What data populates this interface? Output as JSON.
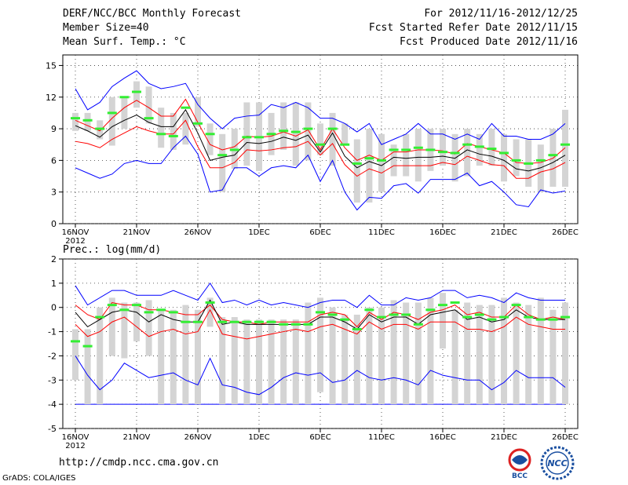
{
  "header": {
    "title": "DERF/NCC/BCC Monthly Forecast",
    "member_size": "Member Size=40",
    "variable": "Mean Surf. Temp.: °C",
    "period": "For 2012/11/16-2012/12/25",
    "started": "Fcst Started Refer Date 2012/11/15",
    "produced": "Fcst Produced Date 2012/11/16"
  },
  "footer": {
    "url": "http://cmdp.ncc.cma.gov.cn",
    "credit": "GrADS: COLA/IGES",
    "logo_bcc": "BCC",
    "logo_ncc": "NCC"
  },
  "colors": {
    "max": "#0000ff",
    "pct": "#ff0000",
    "mean": "#000000",
    "box": "#d4d4d4",
    "median": "#33ee33"
  },
  "chart_data": [
    {
      "type": "box",
      "title": "Mean Surf. Temp.: °C",
      "ylim": [
        0,
        16
      ],
      "yticks": [
        0,
        3,
        6,
        9,
        12,
        15
      ],
      "xticks": [
        {
          "day": 0,
          "label": "16NOV",
          "sub": "2012"
        },
        {
          "day": 5,
          "label": "21NOV"
        },
        {
          "day": 10,
          "label": "26NOV"
        },
        {
          "day": 15,
          "label": "1DEC"
        },
        {
          "day": 20,
          "label": "6DEC"
        },
        {
          "day": 25,
          "label": "11DEC"
        },
        {
          "day": 30,
          "label": "16DEC"
        },
        {
          "day": 35,
          "label": "21DEC"
        },
        {
          "day": 40,
          "label": "26DEC"
        }
      ],
      "days": 40,
      "box_low": [
        8.8,
        8.8,
        8.0,
        7.4,
        9.0,
        11.0,
        9.5,
        7.2,
        7.0,
        7.5,
        9.2,
        6.5,
        3.0,
        5.2,
        5.5,
        5.0,
        6.5,
        7.0,
        5.5,
        6.0,
        6.5,
        5.5,
        7.5,
        2.0,
        2.0,
        3.0,
        4.5,
        4.5,
        4.0,
        5.0,
        5.5,
        4.0,
        4.5,
        5.5,
        5.5,
        4.0,
        4.5,
        3.5,
        3.0,
        3.5,
        3.5
      ],
      "box_high": [
        10.5,
        10.5,
        9.8,
        12.0,
        12.0,
        13.5,
        13.0,
        11.0,
        10.5,
        10.5,
        12.0,
        9.5,
        8.5,
        9.0,
        11.5,
        11.5,
        10.5,
        11.5,
        11.5,
        11.5,
        9.5,
        10.5,
        9.5,
        8.0,
        9.0,
        8.5,
        7.5,
        8.5,
        9.0,
        9.0,
        9.0,
        8.5,
        9.0,
        8.5,
        9.0,
        8.5,
        8.0,
        8.0,
        7.5,
        9.0,
        10.8
      ],
      "median": [
        10.0,
        9.8,
        9.0,
        10.5,
        12.0,
        12.5,
        10.0,
        8.5,
        8.3,
        11.0,
        9.5,
        8.5,
        6.5,
        7.0,
        8.2,
        8.2,
        8.5,
        8.8,
        8.7,
        9.0,
        7.5,
        9.0,
        7.5,
        5.7,
        6.2,
        6.0,
        7.0,
        7.0,
        7.2,
        7.0,
        6.8,
        6.7,
        7.5,
        7.3,
        7.1,
        6.7,
        6.0,
        5.7,
        6.0,
        6.5,
        7.5
      ],
      "max": [
        12.8,
        10.8,
        11.5,
        13.0,
        13.8,
        14.5,
        13.3,
        12.8,
        13.0,
        13.3,
        11.3,
        10.0,
        9.0,
        10.0,
        10.2,
        10.3,
        11.3,
        11.0,
        11.5,
        11.0,
        10.0,
        10.0,
        9.5,
        8.7,
        9.5,
        7.5,
        8.0,
        8.5,
        9.5,
        8.5,
        8.5,
        8.0,
        8.5,
        8.0,
        9.5,
        8.3,
        8.3,
        8.0,
        8.0,
        8.5,
        9.5
      ],
      "upper": [
        9.8,
        9.3,
        8.8,
        10.0,
        11.0,
        11.7,
        11.0,
        10.2,
        10.2,
        11.8,
        9.6,
        7.5,
        7.0,
        7.3,
        8.3,
        8.2,
        8.3,
        8.7,
        8.3,
        8.9,
        7.0,
        9.0,
        7.2,
        6.0,
        6.5,
        6.0,
        6.8,
        6.8,
        7.0,
        7.0,
        6.9,
        6.6,
        7.6,
        7.3,
        7.0,
        6.7,
        5.8,
        5.7,
        5.8,
        6.2,
        7.2
      ],
      "mean": [
        9.3,
        8.8,
        8.2,
        9.2,
        9.8,
        10.3,
        9.6,
        9.2,
        9.2,
        10.8,
        8.6,
        6.0,
        6.3,
        6.5,
        7.7,
        7.6,
        7.8,
        8.2,
        7.9,
        8.4,
        6.8,
        8.6,
        6.4,
        5.3,
        5.9,
        5.5,
        6.3,
        6.2,
        6.3,
        6.3,
        6.4,
        6.2,
        7.0,
        6.6,
        6.4,
        6.0,
        5.2,
        5.0,
        5.3,
        5.8,
        6.5
      ],
      "lower": [
        7.8,
        7.6,
        7.2,
        8.0,
        8.6,
        9.2,
        8.8,
        8.5,
        8.5,
        9.8,
        7.3,
        5.3,
        5.3,
        5.8,
        7.0,
        6.9,
        7.0,
        7.2,
        7.3,
        7.8,
        6.5,
        7.6,
        5.6,
        4.5,
        5.2,
        4.8,
        5.5,
        5.5,
        5.5,
        5.5,
        5.8,
        5.6,
        6.4,
        6.0,
        5.6,
        5.5,
        4.3,
        4.3,
        4.9,
        5.2,
        5.8
      ],
      "min": [
        5.3,
        4.8,
        4.3,
        4.7,
        5.7,
        6.0,
        5.7,
        5.7,
        7.2,
        8.3,
        6.6,
        3.0,
        3.2,
        5.3,
        5.3,
        4.5,
        5.3,
        5.5,
        5.3,
        6.5,
        4.0,
        6.0,
        3.0,
        1.3,
        2.5,
        2.4,
        3.6,
        3.8,
        2.9,
        4.2,
        4.2,
        4.2,
        4.8,
        3.6,
        4.0,
        3.0,
        1.8,
        1.6,
        3.2,
        2.9,
        3.1
      ]
    },
    {
      "type": "box",
      "title": "Prec.: log(mm/d)",
      "ylim": [
        -5,
        2
      ],
      "yticks": [
        -5,
        -4,
        -3,
        -2,
        -1,
        0,
        1,
        2
      ],
      "xticks": [
        {
          "day": 0,
          "label": "16NOV",
          "sub": "2012"
        },
        {
          "day": 5,
          "label": "21NOV"
        },
        {
          "day": 10,
          "label": "26NOV"
        },
        {
          "day": 15,
          "label": "1DEC"
        },
        {
          "day": 20,
          "label": "6DEC"
        },
        {
          "day": 25,
          "label": "11DEC"
        },
        {
          "day": 30,
          "label": "16DEC"
        },
        {
          "day": 35,
          "label": "21DEC"
        },
        {
          "day": 40,
          "label": "26DEC"
        }
      ],
      "days": 40,
      "floor": -4,
      "box_low": [
        -3.0,
        -4.0,
        -4.0,
        -2.0,
        -2.1,
        -1.4,
        -2.0,
        -4.0,
        -4.0,
        -4.0,
        -4.0,
        -0.8,
        -4.0,
        -4.0,
        -4.0,
        -4.0,
        -4.0,
        -4.0,
        -4.0,
        -4.0,
        -3.5,
        -4.0,
        -4.0,
        -4.0,
        -4.0,
        -4.0,
        -4.0,
        -4.0,
        -4.0,
        -4.0,
        -1.7,
        -4.0,
        -4.0,
        -4.0,
        -4.0,
        -4.0,
        -4.0,
        -4.0,
        -4.0,
        -4.0,
        -4.0
      ],
      "box_high": [
        -0.9,
        -0.9,
        0.0,
        0.4,
        0.2,
        0.2,
        0.3,
        -0.1,
        -0.1,
        0.1,
        -0.1,
        0.4,
        -0.4,
        -0.4,
        -0.5,
        -0.5,
        -0.5,
        -0.5,
        -0.5,
        0.2,
        0.4,
        0.0,
        -0.3,
        -0.3,
        0.0,
        0.0,
        0.3,
        0.2,
        0.2,
        0.4,
        0.6,
        -0.1,
        0.2,
        0.1,
        0.1,
        0.4,
        0.2,
        0.1,
        0.4,
        -0.1,
        0.2
      ],
      "median": [
        -1.4,
        -1.6,
        -0.4,
        0.1,
        -0.1,
        0.1,
        -0.2,
        -0.1,
        -0.2,
        -0.6,
        -0.6,
        0.2,
        -0.6,
        -0.6,
        -0.6,
        -0.6,
        -0.6,
        -0.7,
        -0.7,
        -0.7,
        -0.2,
        -0.3,
        -0.5,
        -0.9,
        -0.1,
        -0.4,
        -0.3,
        -0.3,
        -0.7,
        -0.1,
        0.1,
        0.2,
        -0.4,
        -0.3,
        -0.5,
        -0.4,
        0.1,
        -0.4,
        -0.5,
        -0.5,
        -0.4
      ],
      "max": [
        0.9,
        0.1,
        0.4,
        0.7,
        0.7,
        0.5,
        0.5,
        0.5,
        0.7,
        0.5,
        0.3,
        1.0,
        0.2,
        0.3,
        0.1,
        0.3,
        0.1,
        0.2,
        0.1,
        0.0,
        0.2,
        0.3,
        0.3,
        0.0,
        0.5,
        0.1,
        0.1,
        0.4,
        0.3,
        0.4,
        0.7,
        0.7,
        0.4,
        0.5,
        0.4,
        0.2,
        0.6,
        0.4,
        0.3,
        0.3,
        0.3
      ],
      "upper": [
        0.1,
        -0.3,
        -0.5,
        0.2,
        0.1,
        0.1,
        -0.1,
        -0.1,
        -0.2,
        -0.3,
        -0.3,
        0.1,
        -0.5,
        -0.6,
        -0.6,
        -0.7,
        -0.6,
        -0.6,
        -0.6,
        -0.6,
        -0.3,
        -0.2,
        -0.3,
        -0.8,
        -0.2,
        -0.5,
        -0.2,
        -0.3,
        -0.5,
        -0.2,
        -0.1,
        0.1,
        -0.3,
        -0.2,
        -0.4,
        -0.4,
        0.1,
        -0.3,
        -0.5,
        -0.4,
        -0.5
      ],
      "mean": [
        -0.2,
        -0.8,
        -0.5,
        -0.2,
        -0.1,
        -0.2,
        -0.6,
        -0.3,
        -0.5,
        -0.6,
        -0.6,
        0.3,
        -0.7,
        -0.6,
        -0.7,
        -0.7,
        -0.7,
        -0.7,
        -0.7,
        -0.7,
        -0.4,
        -0.4,
        -0.6,
        -0.9,
        -0.3,
        -0.6,
        -0.4,
        -0.4,
        -0.7,
        -0.3,
        -0.2,
        -0.1,
        -0.5,
        -0.4,
        -0.6,
        -0.5,
        -0.1,
        -0.4,
        -0.5,
        -0.5,
        -0.5
      ],
      "lower": [
        -0.7,
        -1.2,
        -1.0,
        -0.6,
        -0.4,
        -0.8,
        -1.2,
        -1.0,
        -0.9,
        -1.1,
        -1.0,
        -0.1,
        -1.1,
        -1.2,
        -1.3,
        -1.2,
        -1.1,
        -1.0,
        -0.9,
        -1.0,
        -0.8,
        -0.7,
        -0.9,
        -1.1,
        -0.6,
        -0.9,
        -0.7,
        -0.7,
        -0.9,
        -0.6,
        -0.6,
        -0.6,
        -0.9,
        -0.9,
        -1.0,
        -0.8,
        -0.4,
        -0.7,
        -0.8,
        -0.9,
        -0.9
      ],
      "min": [
        -2.0,
        -2.8,
        -3.4,
        -3.0,
        -2.3,
        -2.6,
        -2.9,
        -2.8,
        -2.7,
        -3.0,
        -3.2,
        -2.1,
        -3.2,
        -3.3,
        -3.5,
        -3.6,
        -3.3,
        -2.9,
        -2.7,
        -2.8,
        -2.7,
        -3.1,
        -3.0,
        -2.6,
        -2.9,
        -3.0,
        -2.9,
        -3.0,
        -3.2,
        -2.6,
        -2.8,
        -2.9,
        -3.0,
        -3.0,
        -3.4,
        -3.1,
        -2.6,
        -2.9,
        -2.9,
        -2.9,
        -3.3
      ]
    }
  ]
}
